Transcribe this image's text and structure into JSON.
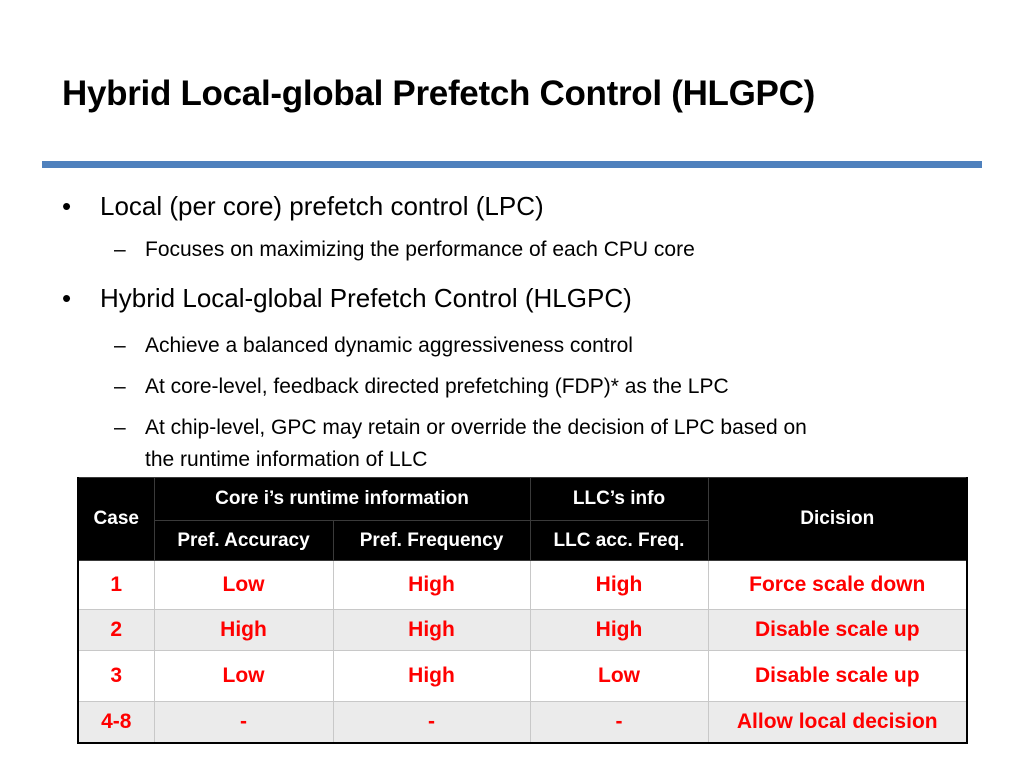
{
  "slide": {
    "title": "Hybrid Local-global Prefetch Control (HLGPC)"
  },
  "bullets": {
    "lpc": {
      "marker": "•",
      "text": "Local (per core) prefetch control (LPC)",
      "sub": [
        {
          "marker": "–",
          "text": "Focuses on maximizing the performance of each CPU core"
        }
      ]
    },
    "hlgpc": {
      "marker": "•",
      "text": "Hybrid Local-global Prefetch Control (HLGPC)",
      "sub": [
        {
          "marker": "–",
          "text": "Achieve a balanced dynamic aggressiveness control"
        },
        {
          "marker": "–",
          "text": "At core-level, feedback directed prefetching (FDP)* as the LPC"
        },
        {
          "marker": "–",
          "text": "At chip-level, GPC may retain or override the decision of LPC based on",
          "text2": "the runtime information of LLC"
        }
      ]
    }
  },
  "table": {
    "headers": {
      "case": "Case",
      "core_group": "Core i’s runtime information",
      "llc_group": "LLC’s info",
      "decision": "Dicision",
      "pref_accuracy": "Pref. Accuracy",
      "pref_frequency": "Pref. Frequency",
      "llc_acc_freq": "LLC acc. Freq."
    },
    "rows": [
      {
        "case": "1",
        "accuracy": "Low",
        "frequency": "High",
        "llc": "High",
        "decision": "Force scale down"
      },
      {
        "case": "2",
        "accuracy": "High",
        "frequency": "High",
        "llc": "High",
        "decision": "Disable scale up"
      },
      {
        "case": "3",
        "accuracy": "Low",
        "frequency": "High",
        "llc": "Low",
        "decision": "Disable scale up"
      },
      {
        "case": "4-8",
        "accuracy": "-",
        "frequency": "-",
        "llc": "-",
        "decision": "Allow local decision"
      }
    ],
    "colors": {
      "header_bg": "#000000",
      "header_text": "#ffffff",
      "value_text": "#ff0000",
      "shaded_row": "#ebebeb"
    }
  },
  "theme": {
    "rule_color": "#4f81bd"
  }
}
